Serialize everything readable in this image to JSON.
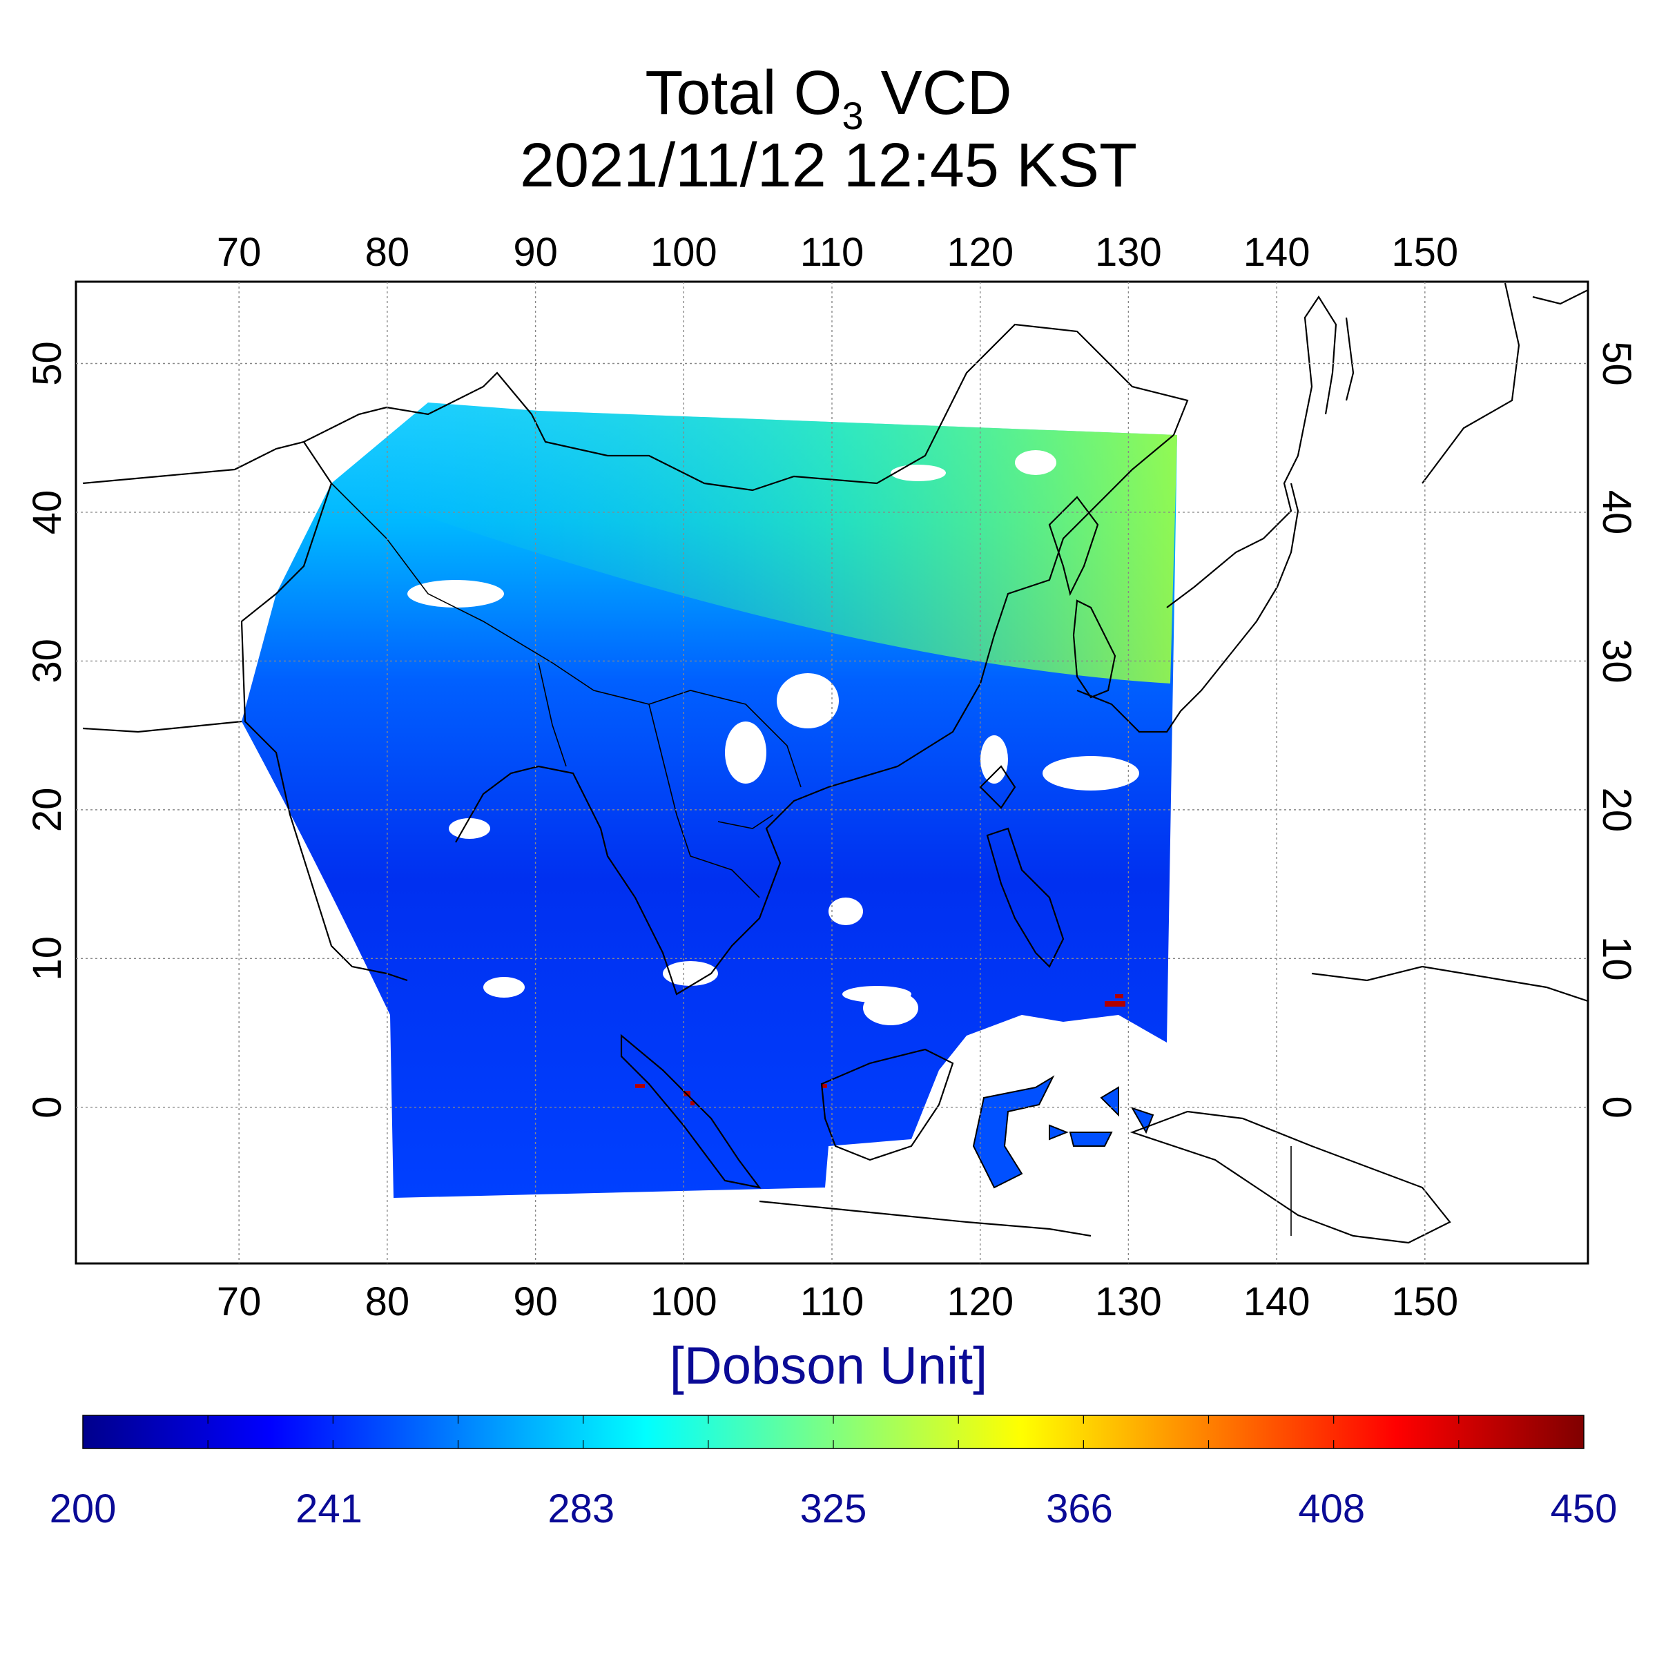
{
  "title": {
    "line1_prefix": "Total O",
    "line1_sub": "3",
    "line1_suffix": " VCD",
    "line2": "2021/11/12 12:45 KST"
  },
  "map": {
    "lon_ticks": [
      "70",
      "80",
      "90",
      "100",
      "110",
      "120",
      "130",
      "140",
      "150"
    ],
    "lat_ticks": [
      "50",
      "40",
      "30",
      "20",
      "10",
      "0"
    ],
    "lon_range": [
      59,
      161
    ],
    "lat_range": [
      -10.5,
      55.5
    ]
  },
  "colorbar": {
    "unit": "[Dobson Unit]",
    "labels": [
      "200",
      "241",
      "283",
      "325",
      "366",
      "408",
      "450"
    ],
    "min": 200,
    "max": 450,
    "colors": [
      "#00008c",
      "#0000ff",
      "#0080ff",
      "#00ffff",
      "#80ff80",
      "#ffff00",
      "#ff8000",
      "#ff0000",
      "#800000"
    ]
  }
}
